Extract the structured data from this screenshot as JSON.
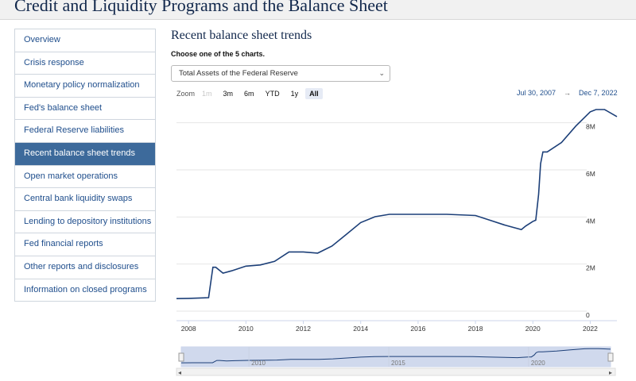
{
  "page": {
    "title": "Credit and Liquidity Programs and the Balance Sheet"
  },
  "sidebar": {
    "items": [
      {
        "label": "Overview"
      },
      {
        "label": "Crisis response"
      },
      {
        "label": "Monetary policy normalization"
      },
      {
        "label": "Fed's balance sheet"
      },
      {
        "label": "Federal Reserve liabilities"
      },
      {
        "label": "Recent balance sheet trends",
        "active": true
      },
      {
        "label": "Open market operations"
      },
      {
        "label": "Central bank liquidity swaps"
      },
      {
        "label": "Lending to depository institutions"
      },
      {
        "label": "Fed financial reports"
      },
      {
        "label": "Other reports and disclosures"
      },
      {
        "label": "Information on closed programs"
      }
    ]
  },
  "main": {
    "section_title": "Recent balance sheet trends",
    "choose_label": "Choose one of the 5 charts.",
    "chart_select": {
      "value": "Total Assets of the Federal Reserve"
    },
    "zoom": {
      "label": "Zoom",
      "buttons": [
        {
          "label": "1m",
          "state": "disabled"
        },
        {
          "label": "3m"
        },
        {
          "label": "6m"
        },
        {
          "label": "YTD"
        },
        {
          "label": "1y"
        },
        {
          "label": "All",
          "state": "selected"
        }
      ]
    },
    "range": {
      "from": "Jul 30, 2007",
      "arrow": "→",
      "to": "Dec 7, 2022"
    }
  },
  "colors": {
    "line": "#1c3f78",
    "navigator_fill": "#ccd6eb",
    "active_nav": "#3d6a9b",
    "grid": "#e6e6e6"
  },
  "chart_data": {
    "type": "line",
    "x_tick_labels": [
      "2008",
      "2010",
      "2012",
      "2014",
      "2016",
      "2018",
      "2020",
      "2022"
    ],
    "y_tick_labels": [
      "0",
      "2M",
      "4M",
      "6M",
      "8M"
    ],
    "navigator_labels": [
      "2010",
      "2015",
      "2020"
    ],
    "ylim": [
      0,
      9
    ],
    "grid": true,
    "series": [
      {
        "x": [
          2007.58,
          2008.0,
          2008.5,
          2008.7,
          2008.85,
          2008.95,
          2009.2,
          2009.5,
          2010.0,
          2010.5,
          2011.0,
          2011.5,
          2012.0,
          2012.5,
          2013.0,
          2013.5,
          2014.0,
          2014.5,
          2015.0,
          2016.0,
          2017.0,
          2018.0,
          2018.5,
          2019.0,
          2019.6,
          2019.75,
          2020.0,
          2020.1,
          2020.2,
          2020.27,
          2020.35,
          2020.5,
          2021.0,
          2021.5,
          2022.0,
          2022.2,
          2022.5,
          2022.93
        ],
        "values": [
          0.87,
          0.88,
          0.9,
          0.91,
          2.2,
          2.2,
          1.95,
          2.05,
          2.25,
          2.3,
          2.45,
          2.85,
          2.85,
          2.8,
          3.1,
          3.6,
          4.1,
          4.35,
          4.45,
          4.45,
          4.45,
          4.4,
          4.2,
          4.0,
          3.8,
          3.95,
          4.15,
          4.2,
          5.3,
          6.6,
          7.1,
          7.1,
          7.5,
          8.2,
          8.8,
          8.9,
          8.9,
          8.6
        ]
      }
    ]
  }
}
